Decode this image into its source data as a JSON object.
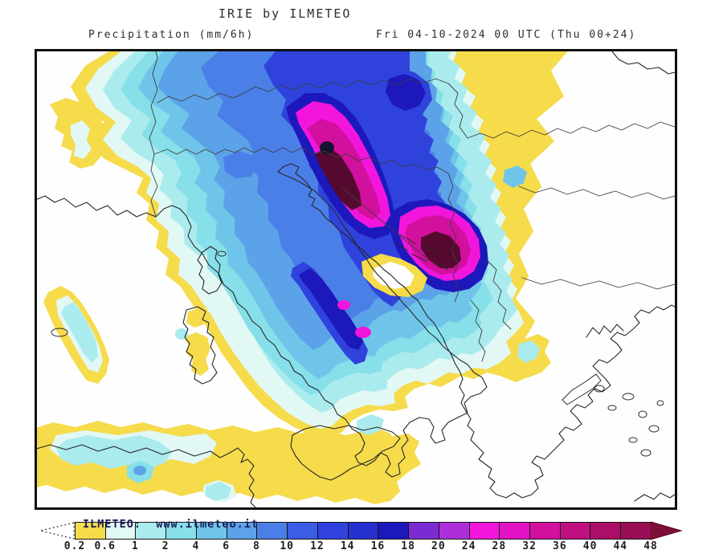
{
  "header": {
    "title": "IRIE by ILMETEO",
    "subtitle_left": "Precipitation (mm/6h)",
    "subtitle_right": "Fri 04-10-2024 00 UTC (Thu 00+24)"
  },
  "watermark": "ILMETEO:  www.ilmeteo.it",
  "colorbar": {
    "units": "mm/6h",
    "ticks": [
      "0.2",
      "0.6",
      "1",
      "2",
      "4",
      "6",
      "8",
      "10",
      "12",
      "14",
      "16",
      "18",
      "20",
      "24",
      "28",
      "32",
      "36",
      "40",
      "44",
      "48"
    ],
    "colors": [
      "#F6DB4B",
      "#E2F8F4",
      "#AAEBEE",
      "#86DFE9",
      "#6FC5E9",
      "#5CA2E8",
      "#4B7FE8",
      "#3B5CE4",
      "#2F43DC",
      "#2631CF",
      "#1D18BC",
      "#7B2BD2",
      "#AF2EDC",
      "#F216DC",
      "#E213C4",
      "#D2109E",
      "#C00F81",
      "#AC0E67",
      "#990F55"
    ],
    "arrow_right_color": "#7D1038",
    "arrow_left_style": "dotted-white"
  },
  "chart_data": {
    "type": "heatmap",
    "title": "IRIE by ILMETEO",
    "variable": "Precipitation (mm/6h)",
    "valid_time": "Fri 04-10-2024 00 UTC (Thu 00+24)",
    "legend_levels_mm": [
      0.2,
      0.6,
      1,
      2,
      4,
      6,
      8,
      10,
      12,
      14,
      16,
      18,
      20,
      24,
      28,
      32,
      36,
      40,
      44,
      48
    ],
    "legend_colors": [
      "#F6DB4B",
      "#E2F8F4",
      "#AAEBEE",
      "#86DFE9",
      "#6FC5E9",
      "#5CA2E8",
      "#4B7FE8",
      "#3B5CE4",
      "#2F43DC",
      "#2631CF",
      "#1D18BC",
      "#7B2BD2",
      "#AF2EDC",
      "#F216DC",
      "#E213C4",
      "#D2109E",
      "#C00F81",
      "#AC0E67",
      "#990F55"
    ],
    "legend_position": "bottom",
    "map_region": "Central Mediterranean: Italy, Alps, Adriatic, Balkans, Greece, North Africa"
  }
}
